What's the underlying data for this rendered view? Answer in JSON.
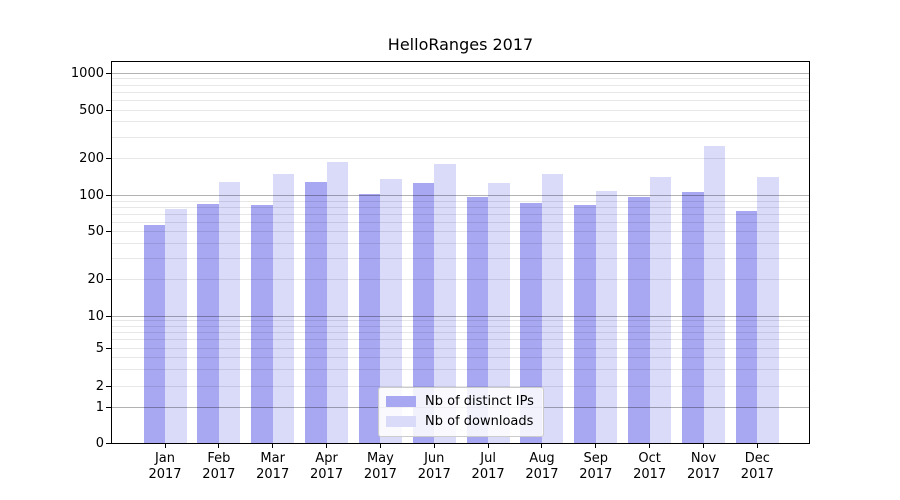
{
  "chart_data": {
    "type": "bar",
    "title": "HelloRanges 2017",
    "categories": [
      "Jan\n2017",
      "Feb\n2017",
      "Mar\n2017",
      "Apr\n2017",
      "May\n2017",
      "Jun\n2017",
      "Jul\n2017",
      "Aug\n2017",
      "Sep\n2017",
      "Oct\n2017",
      "Nov\n2017",
      "Dec\n2017"
    ],
    "series": [
      {
        "name": "Nb of distinct IPs",
        "color": "#a7a7f2",
        "values": [
          57,
          86,
          84,
          129,
          103,
          128,
          97,
          87,
          83,
          98,
          108,
          75
        ]
      },
      {
        "name": "Nb of downloads",
        "color": "#dadaf9",
        "values": [
          78,
          130,
          150,
          187,
          138,
          180,
          127,
          150,
          110,
          142,
          257,
          142
        ]
      }
    ],
    "y_axis": {
      "scale": "symlog",
      "ticks": [
        1000,
        500,
        200,
        100,
        50,
        20,
        10,
        5,
        2,
        1,
        0
      ],
      "major_gridlines": [
        1,
        10,
        100,
        1000
      ],
      "minor_gridlines": [
        2,
        3,
        4,
        5,
        6,
        7,
        8,
        9,
        20,
        30,
        40,
        50,
        60,
        70,
        80,
        90,
        200,
        300,
        400,
        500,
        600,
        700,
        800,
        900
      ],
      "anchors": [
        [
          0,
          1.0
        ],
        [
          1,
          0.9066
        ],
        [
          2,
          0.8508
        ],
        [
          5,
          0.7521
        ],
        [
          10,
          0.6667
        ],
        [
          100,
          0.3508
        ],
        [
          1000,
          0.0296
        ]
      ]
    },
    "x_axis": {
      "ticks_visible": true
    },
    "legend": {
      "position": "lower-center",
      "entries": [
        "Nb of distinct IPs",
        "Nb of downloads"
      ]
    },
    "grid": true
  }
}
